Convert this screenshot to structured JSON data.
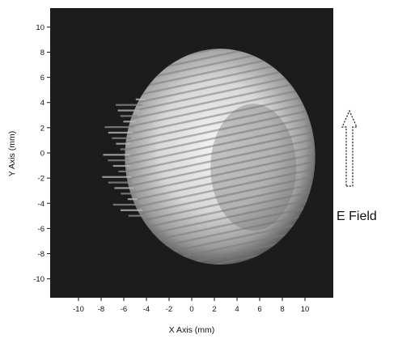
{
  "chart_data": {
    "type": "heatmap",
    "xlabel": "X Axis (mm)",
    "ylabel": "Y Axis (mm)",
    "xlim": [
      -12.5,
      12.5
    ],
    "ylim": [
      -11.5,
      11.5
    ],
    "x_ticks": [
      "-10",
      "-8",
      "-6",
      "-4",
      "-2",
      "0",
      "2",
      "4",
      "6",
      "8",
      "10"
    ],
    "y_ticks": [
      "10",
      "8",
      "6",
      "4",
      "2",
      "0",
      "-2",
      "-4",
      "-6",
      "-8",
      "-10"
    ],
    "grid": false,
    "colors": {
      "background": "#1c1c1c",
      "spot_light": "#f2f2f2",
      "spot_mid": "#b4b4b4",
      "spot_dark": "#5a5a5a"
    },
    "spot": {
      "description_shape": "disc",
      "center_x": 2.5,
      "center_y": -0.3,
      "radius": 8.4
    },
    "annotation": {
      "label": "E Field",
      "arrow_direction": "up"
    }
  }
}
